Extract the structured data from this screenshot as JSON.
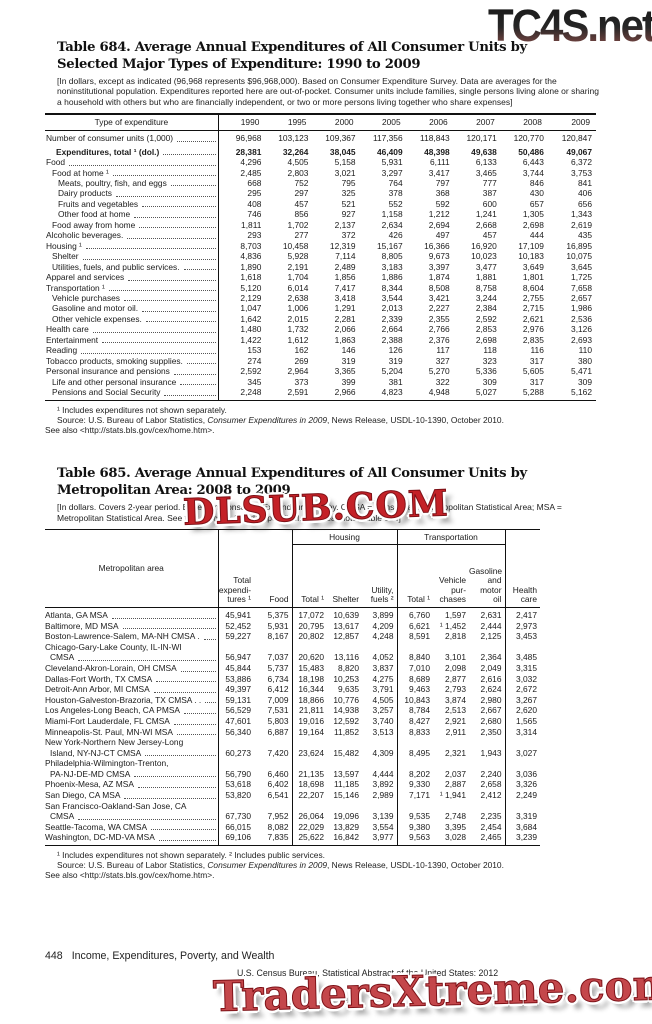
{
  "watermarks": {
    "top": "TC4S.net",
    "middle": "DLSUB.COM",
    "bottom": "TradersXtreme.com"
  },
  "table684": {
    "title_line1": "Table 684. Average Annual Expenditures of All Consumer Units by",
    "title_line2": "Selected Major Types of Expenditure: 1990 to 2009",
    "headnote": "[In dollars, except as indicated (96,968 represents $96,968,000). Based on Consumer Expenditure Survey. Data are averages for the noninstitutional population. Expenditures reported here are out-of-pocket. Consumer units include families, single persons living alone or sharing a household with others but who are financially independent, or two or more persons living together who share expenses]",
    "stub_header": "Type of expenditure",
    "years": [
      "1990",
      "1995",
      "2000",
      "2005",
      "2006",
      "2007",
      "2008",
      "2009"
    ],
    "rows": [
      {
        "label": "Number of consumer units (1,000)",
        "indent": 0,
        "values": [
          "96,968",
          "103,123",
          "109,367",
          "117,356",
          "118,843",
          "120,171",
          "120,770",
          "120,847"
        ]
      },
      {
        "label": "Expenditures, total ¹ (dol.)",
        "indent": "b",
        "bold": true,
        "gap": true,
        "values": [
          "28,381",
          "32,264",
          "38,045",
          "46,409",
          "48,398",
          "49,638",
          "50,486",
          "49,067"
        ]
      },
      {
        "label": "Food",
        "indent": 0,
        "values": [
          "4,296",
          "4,505",
          "5,158",
          "5,931",
          "6,111",
          "6,133",
          "6,443",
          "6,372"
        ]
      },
      {
        "label": "Food at home ¹",
        "indent": 1,
        "values": [
          "2,485",
          "2,803",
          "3,021",
          "3,297",
          "3,417",
          "3,465",
          "3,744",
          "3,753"
        ]
      },
      {
        "label": "Meats, poultry, fish, and eggs",
        "indent": 2,
        "values": [
          "668",
          "752",
          "795",
          "764",
          "797",
          "777",
          "846",
          "841"
        ]
      },
      {
        "label": "Dairy products",
        "indent": 2,
        "values": [
          "295",
          "297",
          "325",
          "378",
          "368",
          "387",
          "430",
          "406"
        ]
      },
      {
        "label": "Fruits and vegetables",
        "indent": 2,
        "values": [
          "408",
          "457",
          "521",
          "552",
          "592",
          "600",
          "657",
          "656"
        ]
      },
      {
        "label": "Other food at home",
        "indent": 2,
        "values": [
          "746",
          "856",
          "927",
          "1,158",
          "1,212",
          "1,241",
          "1,305",
          "1,343"
        ]
      },
      {
        "label": "Food away from home",
        "indent": 1,
        "values": [
          "1,811",
          "1,702",
          "2,137",
          "2,634",
          "2,694",
          "2,668",
          "2,698",
          "2,619"
        ]
      },
      {
        "label": "Alcoholic beverages.",
        "indent": 0,
        "values": [
          "293",
          "277",
          "372",
          "426",
          "497",
          "457",
          "444",
          "435"
        ]
      },
      {
        "label": "Housing ¹",
        "indent": 0,
        "values": [
          "8,703",
          "10,458",
          "12,319",
          "15,167",
          "16,366",
          "16,920",
          "17,109",
          "16,895"
        ]
      },
      {
        "label": "Shelter",
        "indent": 1,
        "values": [
          "4,836",
          "5,928",
          "7,114",
          "8,805",
          "9,673",
          "10,023",
          "10,183",
          "10,075"
        ]
      },
      {
        "label": "Utilities, fuels, and public services.",
        "indent": 1,
        "values": [
          "1,890",
          "2,191",
          "2,489",
          "3,183",
          "3,397",
          "3,477",
          "3,649",
          "3,645"
        ]
      },
      {
        "label": "Apparel and services",
        "indent": 0,
        "values": [
          "1,618",
          "1,704",
          "1,856",
          "1,886",
          "1,874",
          "1,881",
          "1,801",
          "1,725"
        ]
      },
      {
        "label": "Transportation ¹",
        "indent": 0,
        "values": [
          "5,120",
          "6,014",
          "7,417",
          "8,344",
          "8,508",
          "8,758",
          "8,604",
          "7,658"
        ]
      },
      {
        "label": "Vehicle purchases",
        "indent": 1,
        "values": [
          "2,129",
          "2,638",
          "3,418",
          "3,544",
          "3,421",
          "3,244",
          "2,755",
          "2,657"
        ]
      },
      {
        "label": "Gasoline and motor oil.",
        "indent": 1,
        "values": [
          "1,047",
          "1,006",
          "1,291",
          "2,013",
          "2,227",
          "2,384",
          "2,715",
          "1,986"
        ]
      },
      {
        "label": "Other vehicle expenses.",
        "indent": 1,
        "values": [
          "1,642",
          "2,015",
          "2,281",
          "2,339",
          "2,355",
          "2,592",
          "2,621",
          "2,536"
        ]
      },
      {
        "label": "Health care",
        "indent": 0,
        "values": [
          "1,480",
          "1,732",
          "2,066",
          "2,664",
          "2,766",
          "2,853",
          "2,976",
          "3,126"
        ]
      },
      {
        "label": "Entertainment",
        "indent": 0,
        "values": [
          "1,422",
          "1,612",
          "1,863",
          "2,388",
          "2,376",
          "2,698",
          "2,835",
          "2,693"
        ]
      },
      {
        "label": "Reading",
        "indent": 0,
        "values": [
          "153",
          "162",
          "146",
          "126",
          "117",
          "118",
          "116",
          "110"
        ]
      },
      {
        "label": "Tobacco products, smoking supplies.",
        "indent": 0,
        "values": [
          "274",
          "269",
          "319",
          "319",
          "327",
          "323",
          "317",
          "380"
        ]
      },
      {
        "label": "Personal insurance and pensions",
        "indent": 0,
        "values": [
          "2,592",
          "2,964",
          "3,365",
          "5,204",
          "5,270",
          "5,336",
          "5,605",
          "5,471"
        ]
      },
      {
        "label": "Life and other personal insurance",
        "indent": 1,
        "values": [
          "345",
          "373",
          "399",
          "381",
          "322",
          "309",
          "317",
          "309"
        ]
      },
      {
        "label": "Pensions and Social Security",
        "indent": 1,
        "values": [
          "2,248",
          "2,591",
          "2,966",
          "4,823",
          "4,948",
          "5,027",
          "5,288",
          "5,162"
        ]
      }
    ],
    "footnote1": "¹ Includes expenditures not shown separately.",
    "source_prefix": "Source: U.S. Bureau of Labor Statistics, ",
    "source_italic": "Consumer Expenditures in 2009",
    "source_suffix": ", News Release, USDL-10-1390, October 2010.",
    "see_also": "See also <http://stats.bls.gov/cex/home.htm>."
  },
  "table685": {
    "title_line1": "Table 685. Average Annual Expenditures of All Consumer Units by",
    "title_line2": "Metropolitan Area: 2008 to 2009",
    "headnote": "[In dollars. Covers 2-year period. Based on Consumer Expenditure Survey. CMSA = Consolidated Metropolitan Statistical Area; MSA = Metropolitan Statistical Area. See text, Section 1 and Appendix II. See headnote, Table 684]",
    "header": {
      "stub": "Metropolitan area",
      "total_exp": "Total\nexpendi-\ntures ¹",
      "food": "Food",
      "housing": {
        "label": "Housing",
        "cols": [
          "Total ¹",
          "Shelter",
          "Utility,\nfuels ²"
        ]
      },
      "transportation": {
        "label": "Transportation",
        "cols": [
          "Total ¹",
          "Vehicle\npur-\nchases",
          "Gasoline\nand\nmotor\noil"
        ]
      },
      "health": "Health\ncare"
    },
    "rows": [
      {
        "lines": [
          "Atlanta, GA MSA"
        ],
        "values": [
          "45,941",
          "5,375",
          "17,072",
          "10,639",
          "3,899",
          "6,760",
          "1,597",
          "2,631",
          "2,417"
        ]
      },
      {
        "lines": [
          "Baltimore, MD MSA"
        ],
        "values": [
          "52,452",
          "5,931",
          "20,795",
          "13,617",
          "4,209",
          "6,621",
          "¹ 1,452",
          "2,444",
          "2,973"
        ]
      },
      {
        "lines": [
          "Boston-Lawrence-Salem, MA-NH CMSA ."
        ],
        "values": [
          "59,227",
          "8,167",
          "20,802",
          "12,857",
          "4,248",
          "8,591",
          "2,818",
          "2,125",
          "3,453"
        ]
      },
      {
        "lines": [
          "Chicago-Gary-Lake County, IL-IN-WI",
          "CMSA"
        ],
        "values": [
          "56,947",
          "7,037",
          "20,620",
          "13,116",
          "4,052",
          "8,840",
          "3,101",
          "2,364",
          "3,485"
        ]
      },
      {
        "lines": [
          "Cleveland-Akron-Lorain, OH CMSA"
        ],
        "values": [
          "45,844",
          "5,737",
          "15,483",
          "8,820",
          "3,837",
          "7,010",
          "2,098",
          "2,049",
          "3,315"
        ]
      },
      {
        "lines": [
          "Dallas-Fort Worth, TX CMSA"
        ],
        "values": [
          "53,886",
          "6,734",
          "18,198",
          "10,253",
          "4,275",
          "8,689",
          "2,877",
          "2,616",
          "3,032"
        ]
      },
      {
        "lines": [
          "Detroit-Ann Arbor, MI CMSA"
        ],
        "values": [
          "49,397",
          "6,412",
          "16,344",
          "9,635",
          "3,791",
          "9,463",
          "2,793",
          "2,624",
          "2,672"
        ]
      },
      {
        "lines": [
          "Houston-Galveston-Brazoria, TX CMSA . ."
        ],
        "values": [
          "59,131",
          "7,009",
          "18,866",
          "10,776",
          "4,505",
          "10,843",
          "3,874",
          "2,980",
          "3,267"
        ]
      },
      {
        "lines": [
          "Los Angeles-Long Beach, CA PMSA"
        ],
        "values": [
          "56,529",
          "7,531",
          "21,811",
          "14,938",
          "3,257",
          "8,784",
          "2,513",
          "2,667",
          "2,620"
        ]
      },
      {
        "lines": [
          "Miami-Fort Lauderdale, FL CMSA"
        ],
        "values": [
          "47,601",
          "5,803",
          "19,016",
          "12,592",
          "3,740",
          "8,427",
          "2,921",
          "2,680",
          "1,565"
        ]
      },
      {
        "lines": [
          "Minneapolis-St. Paul, MN-WI MSA"
        ],
        "values": [
          "56,340",
          "6,887",
          "19,164",
          "11,852",
          "3,513",
          "8,833",
          "2,911",
          "2,350",
          "3,314"
        ]
      },
      {
        "lines": [
          "New York-Northern New Jersey-Long",
          "Island, NY-NJ-CT CMSA"
        ],
        "values": [
          "60,273",
          "7,420",
          "23,624",
          "15,482",
          "4,309",
          "8,495",
          "2,321",
          "1,943",
          "3,027"
        ]
      },
      {
        "lines": [
          "Philadelphia-Wilmington-Trenton,",
          "PA-NJ-DE-MD CMSA"
        ],
        "values": [
          "56,790",
          "6,460",
          "21,135",
          "13,597",
          "4,444",
          "8,202",
          "2,037",
          "2,240",
          "3,036"
        ]
      },
      {
        "lines": [
          "Phoenix-Mesa, AZ MSA"
        ],
        "values": [
          "53,618",
          "6,402",
          "18,698",
          "11,185",
          "3,892",
          "9,330",
          "2,887",
          "2,658",
          "3,326"
        ]
      },
      {
        "lines": [
          "San Diego, CA MSA"
        ],
        "values": [
          "53,820",
          "6,541",
          "22,207",
          "15,146",
          "2,989",
          "7,171",
          "¹ 1,941",
          "2,412",
          "2,249"
        ]
      },
      {
        "lines": [
          "San Francisco-Oakland-San Jose, CA",
          "CMSA"
        ],
        "values": [
          "67,730",
          "7,952",
          "26,064",
          "19,096",
          "3,139",
          "9,535",
          "2,748",
          "2,235",
          "3,319"
        ]
      },
      {
        "lines": [
          "Seattle-Tacoma, WA CMSA"
        ],
        "values": [
          "66,015",
          "8,082",
          "22,029",
          "13,829",
          "3,554",
          "9,380",
          "3,395",
          "2,454",
          "3,684"
        ]
      },
      {
        "lines": [
          "Washington, DC-MD-VA MSA"
        ],
        "values": [
          "69,106",
          "7,835",
          "25,622",
          "16,842",
          "3,977",
          "9,563",
          "3,028",
          "2,465",
          "3,239"
        ]
      }
    ],
    "footnote1": "¹ Includes expenditures not shown separately. ² Includes public services.",
    "source_prefix": "Source: U.S. Bureau of Labor Statistics, ",
    "source_italic": "Consumer Expenditures in 2009",
    "source_suffix": ", News Release, USDL-10-1390, October 2010.",
    "see_also": "See also <http://stats.bls.gov/cex/home.htm>."
  },
  "footer": {
    "page_number": "448",
    "section_title": "Income, Expenditures, Poverty, and Wealth",
    "source_line": "U.S. Census Bureau, Statistical Abstract of the United States: 2012"
  }
}
